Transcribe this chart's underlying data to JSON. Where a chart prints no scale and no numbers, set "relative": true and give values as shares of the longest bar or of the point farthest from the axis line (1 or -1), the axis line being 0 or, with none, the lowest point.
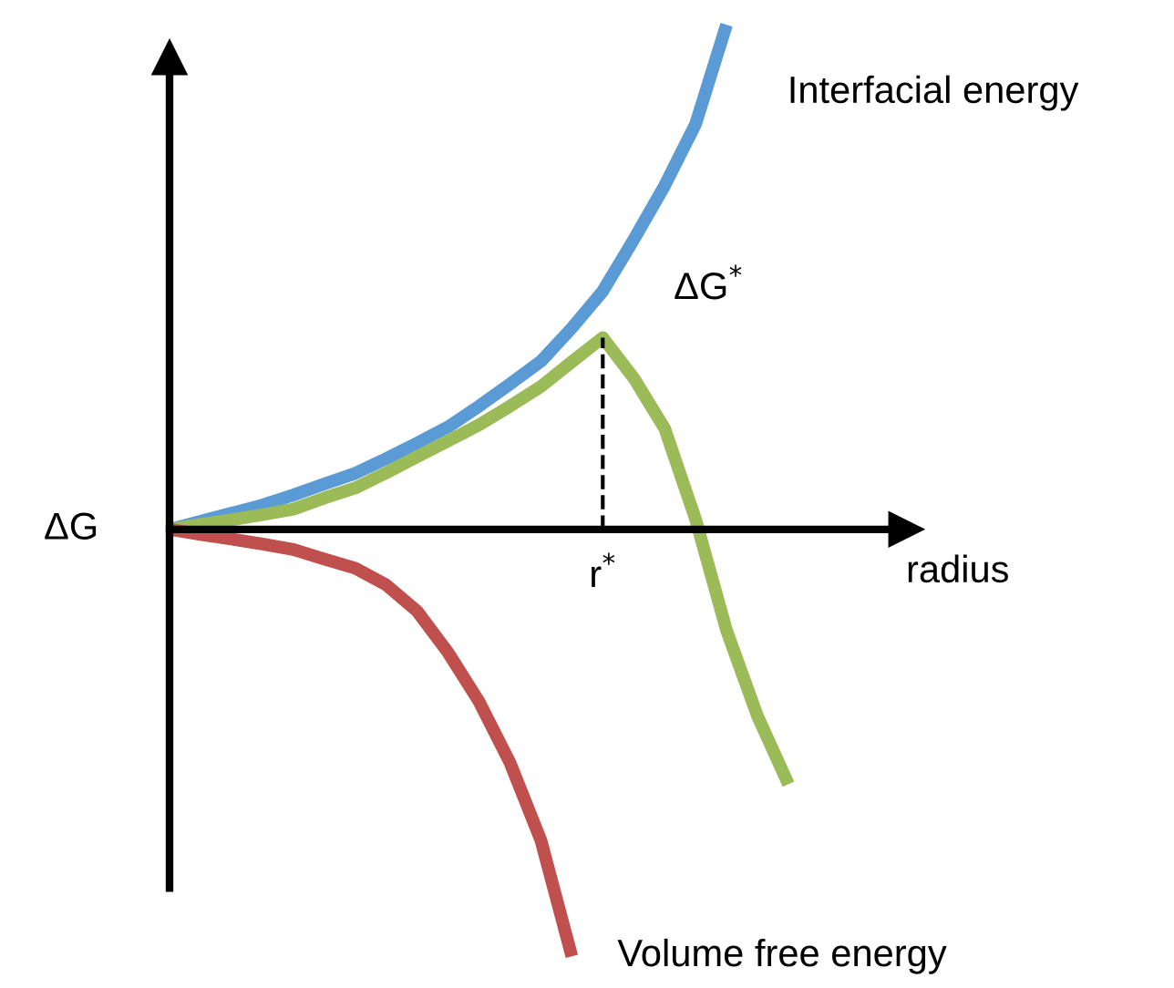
{
  "chart_data": {
    "type": "line",
    "relative": true,
    "xlabel": "radius",
    "ylabel": "ΔG",
    "marker": "none",
    "line_style": "solid",
    "categories": [
      null,
      null,
      null,
      null,
      null,
      null,
      null,
      null,
      null,
      null,
      null,
      null,
      null,
      null,
      null,
      null,
      null,
      null,
      null,
      null,
      null
    ],
    "series": [
      {
        "name": "Interfacial energy",
        "color": "#5b9bd5",
        "values": [
          0,
          0.016,
          0.032,
          0.048,
          0.068,
          0.09,
          0.111,
          0.14,
          0.171,
          0.203,
          0.244,
          0.288,
          0.333,
          0.399,
          0.472,
          0.574,
          0.681,
          0.803,
          1.0,
          null,
          null
        ]
      },
      {
        "color": "#9bbb59",
        "values": [
          0,
          0.01,
          0.019,
          0.029,
          0.04,
          0.062,
          0.082,
          0.112,
          0.144,
          0.175,
          0.207,
          0.244,
          0.283,
          0.332,
          0.38,
          0.3,
          0.2,
          0.02,
          -0.2,
          -0.37,
          -0.505
        ]
      },
      {
        "name": "Volume free energy",
        "color": "#c0504d",
        "values": [
          0,
          -0.01,
          -0.019,
          -0.029,
          -0.04,
          -0.059,
          -0.077,
          -0.11,
          -0.162,
          -0.244,
          -0.341,
          -0.462,
          -0.616,
          -0.846,
          null,
          null,
          null,
          null,
          null,
          null,
          null
        ]
      }
    ],
    "ref_lines": [
      {
        "axis": "x",
        "label": "r$^{*}$",
        "color": "#000000",
        "line_style": "dashed"
      }
    ],
    "annotations": [
      "ΔG$^{*}$"
    ]
  }
}
